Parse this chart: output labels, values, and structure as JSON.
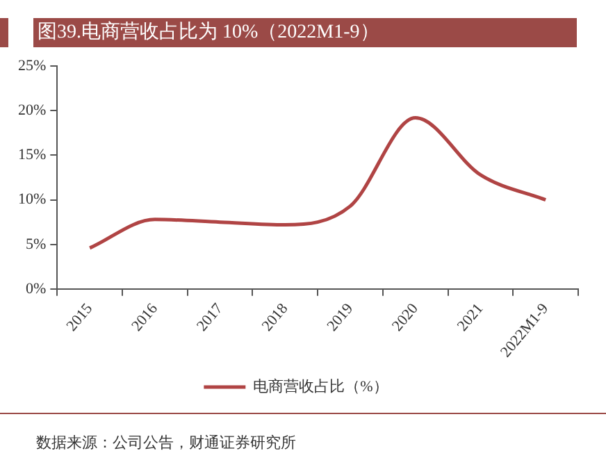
{
  "chart_data": {
    "type": "line",
    "title": "图39.电商营收占比为 10%（2022M1-9）",
    "categories": [
      "2015",
      "2016",
      "2017",
      "2018",
      "2019",
      "2020",
      "2021",
      "2022M1-9"
    ],
    "series": [
      {
        "name": "电商营收占比（%）",
        "color": "#b04444",
        "values": [
          4.6,
          7.8,
          7.5,
          7.2,
          9.3,
          19.2,
          12.8,
          10.0
        ]
      }
    ],
    "ylim": [
      0,
      25
    ],
    "yticks": [
      {
        "value": 0,
        "label": "0%"
      },
      {
        "value": 5,
        "label": "5%"
      },
      {
        "value": 10,
        "label": "10%"
      },
      {
        "value": 15,
        "label": "15%"
      },
      {
        "value": 20,
        "label": "20%"
      },
      {
        "value": 25,
        "label": "25%"
      }
    ],
    "grid": false,
    "legend": "bottom",
    "marker": "none",
    "line_style": "solid",
    "annotations": [
      "数据来源：公司公告，财通证券研究所"
    ]
  }
}
